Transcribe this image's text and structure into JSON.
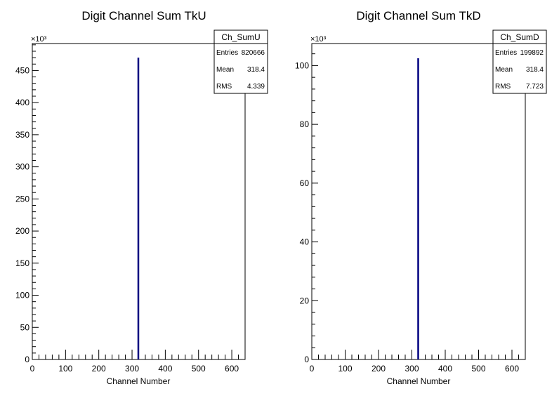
{
  "chart_data": [
    {
      "type": "bar",
      "title": "Digit Channel Sum TkU",
      "xlabel": "Channel Number",
      "ylabel": "",
      "xlim": [
        0,
        640
      ],
      "ylim": [
        0,
        492
      ],
      "y_exponent": "×10³",
      "x_ticks": [
        0,
        100,
        200,
        300,
        400,
        500,
        600
      ],
      "y_ticks": [
        0,
        50,
        100,
        150,
        200,
        250,
        300,
        350,
        400,
        450
      ],
      "x": [
        318.4
      ],
      "values": [
        470
      ],
      "bar_color": "#000080",
      "stats": {
        "name": "Ch_SumU",
        "rows": [
          {
            "label": "Entries",
            "value": "820666"
          },
          {
            "label": "Mean",
            "value": "318.4"
          },
          {
            "label": "RMS",
            "value": "4.339"
          }
        ]
      },
      "legend_position": "top-right",
      "grid": false
    },
    {
      "type": "bar",
      "title": "Digit Channel Sum TkD",
      "xlabel": "Channel Number",
      "ylabel": "",
      "xlim": [
        0,
        640
      ],
      "ylim": [
        0,
        107.5
      ],
      "y_exponent": "×10³",
      "x_ticks": [
        0,
        100,
        200,
        300,
        400,
        500,
        600
      ],
      "y_ticks": [
        0,
        20,
        40,
        60,
        80,
        100
      ],
      "x": [
        318.4
      ],
      "values": [
        102.5
      ],
      "bar_color": "#000080",
      "stats": {
        "name": "Ch_SumD",
        "rows": [
          {
            "label": "Entries",
            "value": "199892"
          },
          {
            "label": "Mean",
            "value": "318.4"
          },
          {
            "label": "RMS",
            "value": "7.723"
          }
        ]
      },
      "legend_position": "top-right",
      "grid": false
    }
  ]
}
